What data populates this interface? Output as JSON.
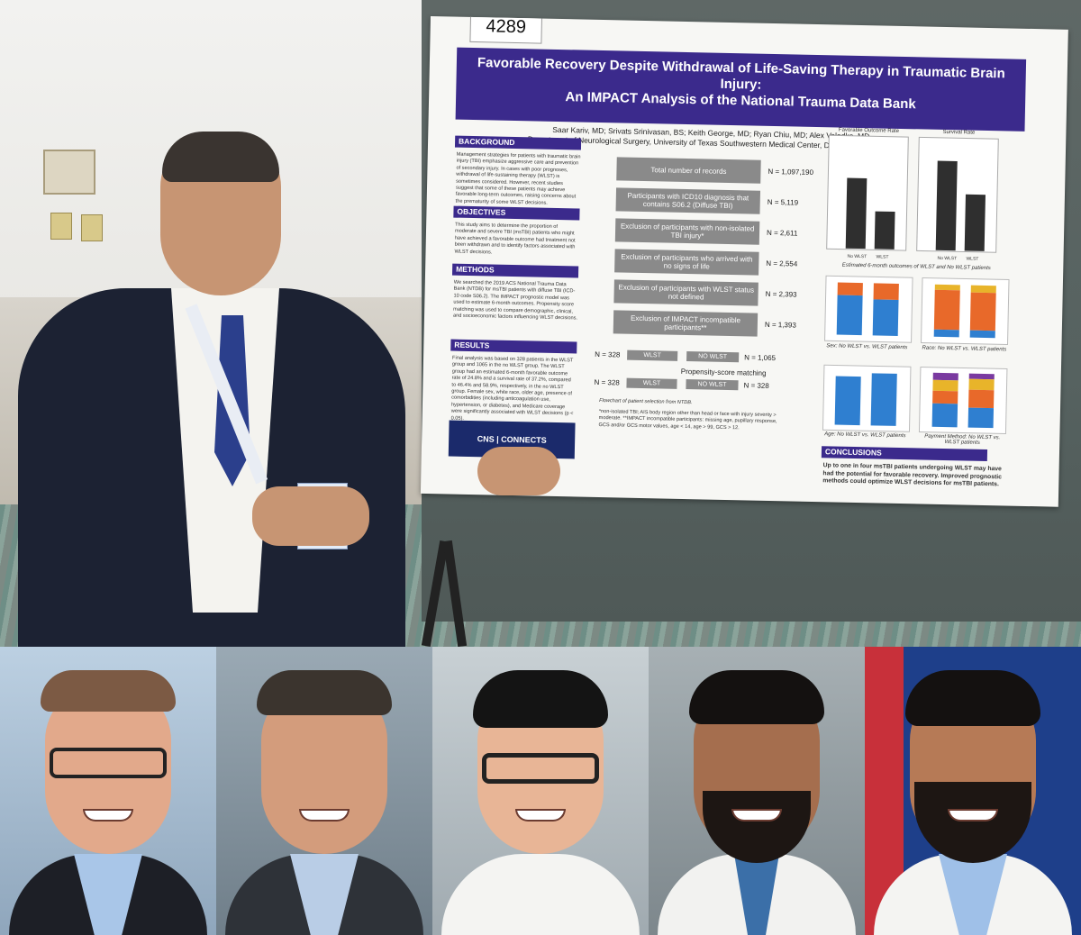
{
  "poster": {
    "number": "4289",
    "title_line1": "Favorable Recovery Despite Withdrawal of Life-Saving Therapy in Traumatic Brain Injury:",
    "title_line2": "An IMPACT Analysis of the National Trauma Data Bank",
    "authors": "Saar Kariv, MD; Srivats Srinivasan, BS; Keith George, MD; Ryan Chiu, MD; Alex Valadka, MD",
    "affiliation": "Department of Neurological Surgery, University of Texas Southwestern Medical Center, Dallas, Texas",
    "sections": {
      "background": "BACKGROUND",
      "objectives": "OBJECTIVES",
      "methods": "METHODS",
      "results": "RESULTS",
      "conclusions": "CONCLUSIONS"
    },
    "background_text": "Management strategies for patients with traumatic brain injury (TBI) emphasize aggressive care and prevention of secondary injury. In cases with poor prognoses, withdrawal of life-sustaining therapy (WLST) is sometimes considered. However, recent studies suggest that some of these patients may achieve favorable long-term outcomes, raising concerns about the prematurity of some WLST decisions.",
    "objectives_text": "This study aims to determine the proportion of moderate and severe TBI (msTBI) patients who might have achieved a favorable outcome had treatment not been withdrawn and to identify factors associated with WLST decisions.",
    "methods_text": "We searched the 2019 ACS National Trauma Data Bank (NTDB) for msTBI patients with diffuse TBI (ICD-10 code S06.2). The IMPACT prognostic model was used to estimate 6-month outcomes. Propensity score matching was used to compare demographic, clinical, and socioeconomic factors influencing WLST decisions.",
    "results_text": "Final analysis was based on 328 patients in the WLST group and 1065 in the no WLST group. The WLST group had an estimated 6-month favorable outcome rate of 24.8% and a survival rate of 37.2%, compared to 46.4% and 58.9%, respectively, in the no WLST group. Female sex, white race, older age, presence of comorbidities (including anticoagulation use, hypertension, or diabetes), and Medicare coverage were significantly associated with WLST decisions (p < 0.05).",
    "conclusions_text": "Up to one in four msTBI patients undergoing WLST may have had the potential for favorable recovery. Improved prognostic methods could optimize WLST decisions for msTBI patients.",
    "flow": [
      {
        "label": "Total number of records",
        "n": "N = 1,097,190"
      },
      {
        "label": "Participants with ICD10 diagnosis that contains S06.2 (Diffuse TBI)",
        "n": "N = 5,119"
      },
      {
        "label": "Exclusion of participants with non-isolated TBI injury*",
        "n": "N = 2,611"
      },
      {
        "label": "Exclusion of participants who arrived with no signs of life",
        "n": "N = 2,554"
      },
      {
        "label": "Exclusion of participants with WLST status not defined",
        "n": "N = 2,393"
      },
      {
        "label": "Exclusion of IMPACT incompatible participants**",
        "n": "N = 1,393"
      }
    ],
    "split": {
      "wlst": "WLST",
      "no_wlst": "NO WLST",
      "wlst_n": "N = 328",
      "no_wlst_n": "N = 1,065",
      "psm": "Propensity-score matching",
      "wlst_n2": "N = 328",
      "no_wlst_n2": "N = 328"
    },
    "flow_caption": "Flowchart of patient selection from NTDB.",
    "footnotes": "*non-isolated TBI; AIS body region other than head or face with injury severity > moderate. **IMPACT incompatible participants: missing age, pupillary response, GCS and/or GCS motor values, age < 14, age > 99, GCS > 12.",
    "charts": {
      "favorable_title": "Favorable Outcome Rate",
      "survival_title": "Survival Rate",
      "bar_caption": "Estimated 6-month outcomes of WLST and No WLST patients",
      "sex_caption": "Sex: No WLST vs. WLST patients",
      "race_caption": "Race: No WLST vs. WLST patients",
      "age_caption": "Age: No WLST vs. WLST patients",
      "payment_caption": "Payment Method: No WLST vs. WLST patients",
      "x_no": "No WLST",
      "x_wlst": "WLST"
    },
    "logo": "CNS | CONNECTS"
  },
  "chart_data": [
    {
      "type": "bar",
      "title": "Favorable Outcome Rate",
      "categories": [
        "No WLST",
        "WLST"
      ],
      "values": [
        46.4,
        24.8
      ],
      "ylim": [
        0,
        70
      ],
      "color": "#2f2f2f"
    },
    {
      "type": "bar",
      "title": "Survival Rate",
      "categories": [
        "No WLST",
        "WLST"
      ],
      "values": [
        58.9,
        37.2
      ],
      "ylim": [
        0,
        70
      ],
      "color": "#2f2f2f"
    }
  ],
  "colors": {
    "poster_banner": "#3b2a8c",
    "flow_box": "#8a8a8a",
    "stack_blue": "#2f7fd0",
    "stack_orange": "#e8692a",
    "board": "#5a6462"
  },
  "portraits": [
    {
      "name_icon": "portrait-1"
    },
    {
      "name_icon": "portrait-2"
    },
    {
      "name_icon": "portrait-3"
    },
    {
      "name_icon": "portrait-4"
    },
    {
      "name_icon": "portrait-5"
    }
  ]
}
